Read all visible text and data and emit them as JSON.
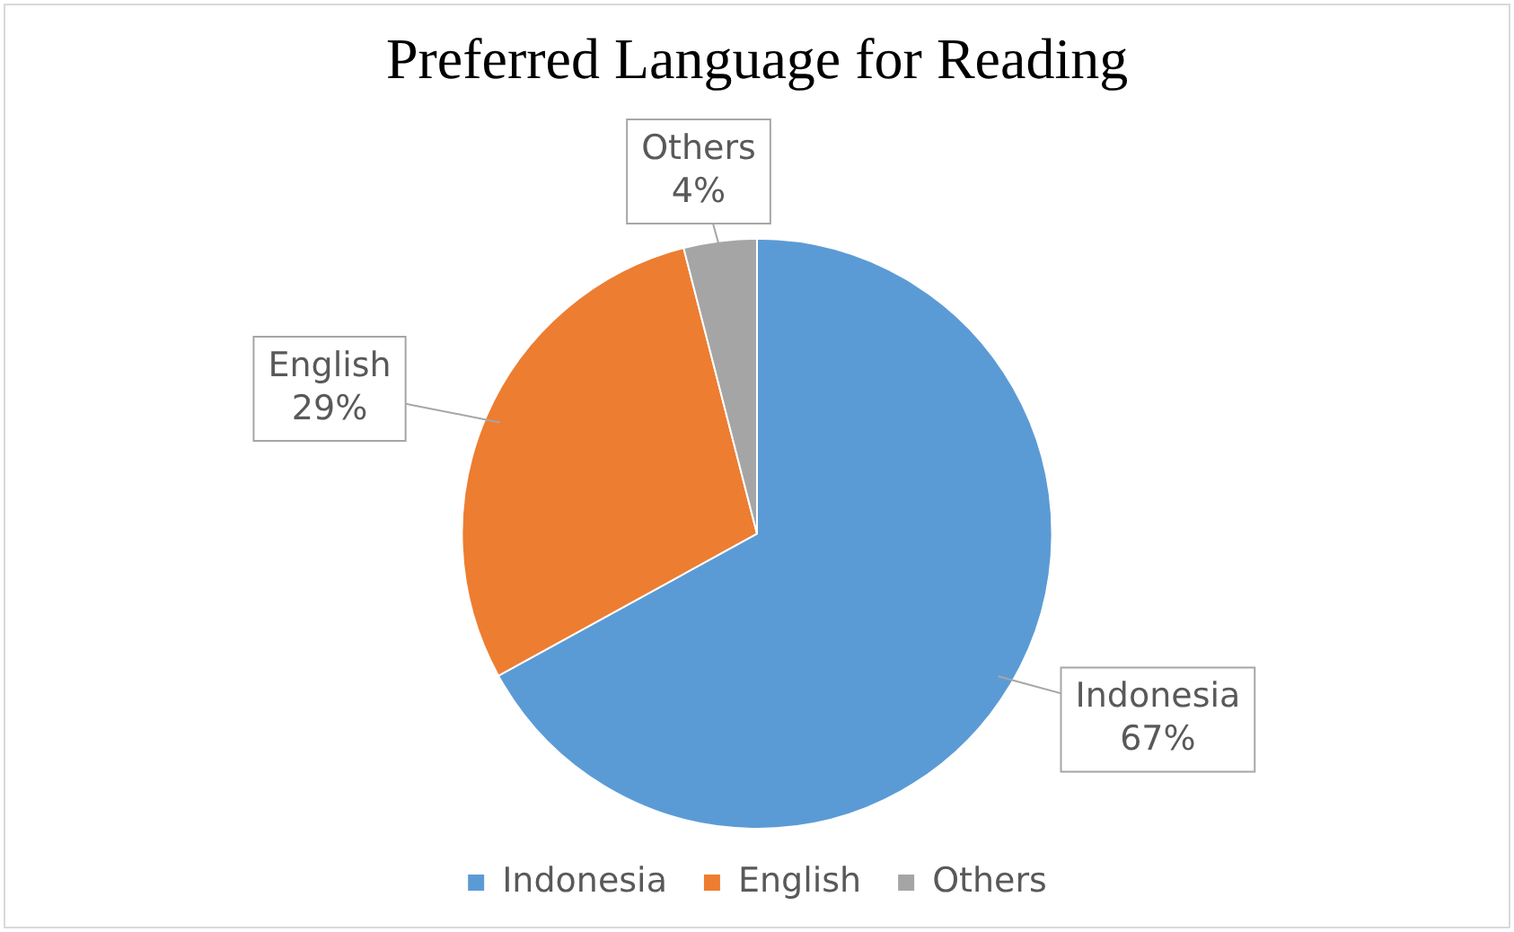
{
  "chart_data": {
    "type": "pie",
    "title": "Preferred Language for Reading",
    "categories": [
      "Indonesia",
      "English",
      "Others"
    ],
    "values": [
      67,
      29,
      4
    ],
    "colors": [
      "#5b9bd5",
      "#ed7d31",
      "#a5a5a5"
    ],
    "value_labels": [
      "67%",
      "29%",
      "4%"
    ],
    "legend": "bottom"
  }
}
